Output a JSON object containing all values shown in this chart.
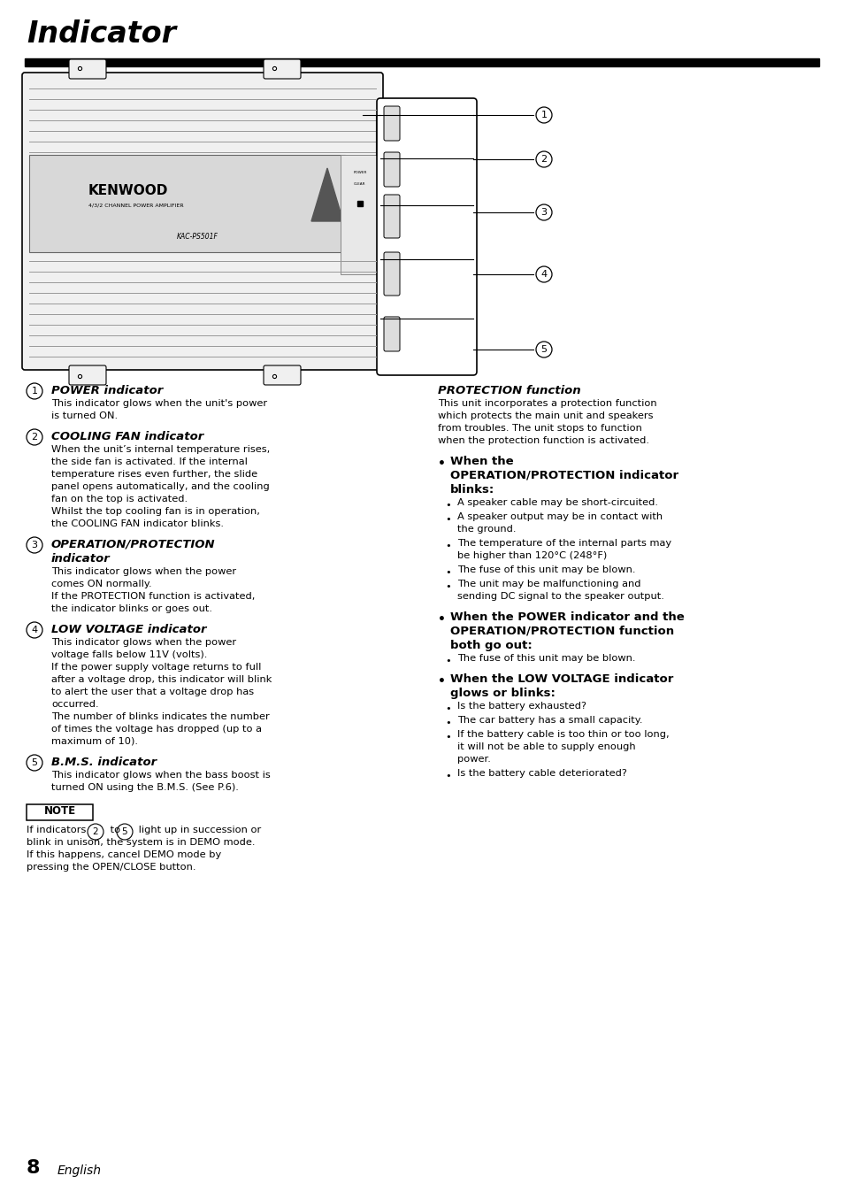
{
  "title": "Indicator",
  "bg_color": "#ffffff",
  "text_color": "#000000",
  "page_number": "8",
  "page_label": "English",
  "sections_left": [
    {
      "num": "1",
      "heading": "POWER indicator",
      "body": "This indicator glows when the unit’s power\nis turned ON."
    },
    {
      "num": "2",
      "heading": "COOLING FAN indicator",
      "body": "When the unit’s internal temperature rises,\nthe side fan is activated. If the internal\ntemperature rises even further, the slide\npanel opens automatically, and the cooling\nfan on the top is activated.\nWhilst the top cooling fan is in operation,\nthe COOLING FAN indicator blinks."
    },
    {
      "num": "3",
      "heading_line1": "OPERATION/PROTECTION",
      "heading_line2": "indicator",
      "body": "This indicator glows when the power\ncomes ON normally.\nIf the PROTECTION function is activated,\nthe indicator blinks or goes out."
    },
    {
      "num": "4",
      "heading": "LOW VOLTAGE indicator",
      "body": "This indicator glows when the power\nvoltage falls below 11V (volts).\nIf the power supply voltage returns to full\nafter a voltage drop, this indicator will blink\nto alert the user that a voltage drop has\noccurred.\nThe number of blinks indicates the number\nof times the voltage has dropped (up to a\nmaximum of 10)."
    },
    {
      "num": "5",
      "heading": "B.M.S. indicator",
      "body": "This indicator glows when the bass boost is\nturned ON using the B.M.S. (See P.6)."
    }
  ],
  "note_heading": "NOTE",
  "note_line1": "If indicators ",
  "note_circ2": "2",
  "note_to": " to ",
  "note_circ5": "5",
  "note_rest": " light up in succession or",
  "note_lines": [
    "blink in unison, the system is in DEMO mode.",
    "If this happens, cancel DEMO mode by",
    "pressing the OPEN/CLOSE button."
  ],
  "right_heading": "PROTECTION function",
  "right_intro": "This unit incorporates a protection function\nwhich protects the main unit and speakers\nfrom troubles. The unit stops to function\nwhen the protection function is activated.",
  "right_bullets": [
    {
      "heading_lines": [
        "When the",
        "OPERATION/PROTECTION indicator",
        "blinks:"
      ],
      "items": [
        "A speaker cable may be short-circuited.",
        "A speaker output may be in contact with\nthe ground.",
        "The temperature of the internal parts may\nbe higher than 120°C (248°F)",
        "The fuse of this unit may be blown.",
        "The unit may be malfunctioning and\nsending DC signal to the speaker output."
      ]
    },
    {
      "heading_lines": [
        "When the POWER indicator and the",
        "OPERATION/PROTECTION function",
        "both go out:"
      ],
      "items": [
        "The fuse of this unit may be blown."
      ]
    },
    {
      "heading_lines": [
        "When the LOW VOLTAGE indicator",
        "glows or blinks:"
      ],
      "items": [
        "Is the battery exhausted?",
        "The car battery has a small capacity.",
        "If the battery cable is too thin or too long,\nit will not be able to supply enough\npower.",
        "Is the battery cable deteriorated?"
      ]
    }
  ]
}
